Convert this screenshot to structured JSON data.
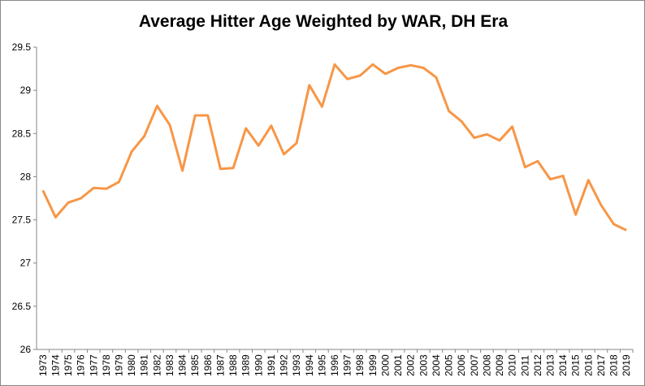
{
  "chart_data": {
    "type": "line",
    "title": "Average Hitter Age Weighted by WAR, DH Era",
    "xlabel": "",
    "ylabel": "",
    "ylim": [
      26,
      29.5
    ],
    "yticks": [
      "26",
      "26.5",
      "27",
      "27.5",
      "28",
      "28.5",
      "29",
      "29.5"
    ],
    "grid": false,
    "line_color": "#F79646",
    "categories": [
      "1973",
      "1974",
      "1975",
      "1976",
      "1977",
      "1978",
      "1979",
      "1980",
      "1981",
      "1982",
      "1983",
      "1984",
      "1985",
      "1986",
      "1987",
      "1988",
      "1989",
      "1990",
      "1991",
      "1992",
      "1993",
      "1994",
      "1995",
      "1996",
      "1997",
      "1998",
      "1999",
      "2000",
      "2001",
      "2002",
      "2003",
      "2004",
      "2005",
      "2006",
      "2007",
      "2008",
      "2009",
      "2010",
      "2011",
      "2012",
      "2013",
      "2014",
      "2015",
      "2016",
      "2017",
      "2018",
      "2019"
    ],
    "values": [
      27.84,
      27.53,
      27.7,
      27.75,
      27.87,
      27.86,
      27.94,
      28.29,
      28.47,
      28.82,
      28.6,
      28.07,
      28.71,
      28.71,
      28.09,
      28.1,
      28.56,
      28.36,
      28.59,
      28.26,
      28.39,
      29.06,
      28.81,
      29.3,
      29.13,
      29.17,
      29.3,
      29.19,
      29.26,
      29.29,
      29.26,
      29.15,
      28.76,
      28.64,
      28.45,
      28.49,
      28.42,
      28.58,
      28.11,
      28.18,
      27.97,
      28.01,
      27.56,
      27.96,
      27.67,
      27.45,
      27.38
    ]
  }
}
